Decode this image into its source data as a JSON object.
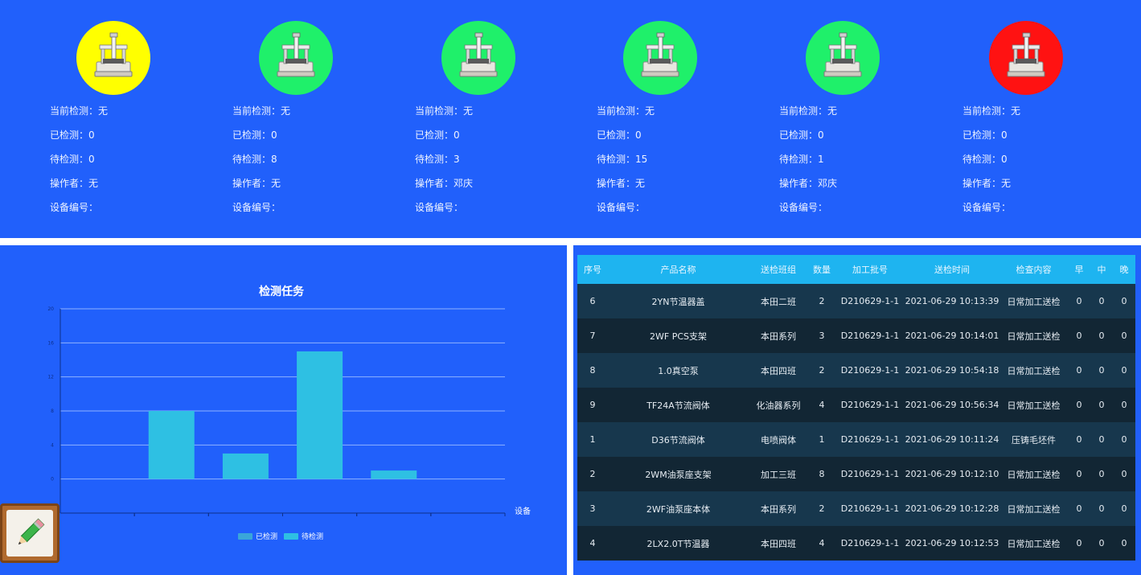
{
  "machines": [
    {
      "status_color": "#ffff00",
      "current_label": "当前检测：",
      "current_value": "无",
      "done_label": "已检测：",
      "done_value": "0",
      "pending_label": "待检测：",
      "pending_value": "0",
      "operator_label": "操作者：",
      "operator_value": "无",
      "device_label": "设备编号："
    },
    {
      "status_color": "#1ff06a",
      "current_label": "当前检测：",
      "current_value": "无",
      "done_label": "已检测：",
      "done_value": "0",
      "pending_label": "待检测：",
      "pending_value": "8",
      "operator_label": "操作者：",
      "operator_value": "无",
      "device_label": "设备编号："
    },
    {
      "status_color": "#1ff06a",
      "current_label": "当前检测：",
      "current_value": "无",
      "done_label": "已检测：",
      "done_value": "0",
      "pending_label": "待检测：",
      "pending_value": "3",
      "operator_label": "操作者：",
      "operator_value": "邓庆",
      "device_label": "设备编号："
    },
    {
      "status_color": "#1ff06a",
      "current_label": "当前检测：",
      "current_value": "无",
      "done_label": "已检测：",
      "done_value": "0",
      "pending_label": "待检测：",
      "pending_value": "15",
      "operator_label": "操作者：",
      "operator_value": "无",
      "device_label": "设备编号："
    },
    {
      "status_color": "#1ff06a",
      "current_label": "当前检测：",
      "current_value": "无",
      "done_label": "已检测：",
      "done_value": "0",
      "pending_label": "待检测：",
      "pending_value": "1",
      "operator_label": "操作者：",
      "operator_value": "邓庆",
      "device_label": "设备编号："
    },
    {
      "status_color": "#ff1212",
      "current_label": "当前检测：",
      "current_value": "无",
      "done_label": "已检测：",
      "done_value": "0",
      "pending_label": "待检测：",
      "pending_value": "0",
      "operator_label": "操作者：",
      "operator_value": "无",
      "device_label": "设备编号："
    }
  ],
  "chart_data": {
    "type": "bar",
    "title": "检测任务",
    "ylabel": "",
    "xlabel": "设备",
    "categories": [
      "",
      "",
      "",
      "",
      "",
      ""
    ],
    "series": [
      {
        "name": "已检测",
        "values": [
          0,
          0,
          0,
          0,
          0,
          0
        ],
        "color": "#3aa6d9"
      },
      {
        "name": "待检测",
        "values": [
          0,
          8,
          3,
          15,
          1,
          0
        ],
        "color": "#2ec0e3"
      }
    ],
    "ylim": [
      -4,
      20
    ],
    "yticks": [
      -4,
      0,
      4,
      8,
      12,
      16,
      20
    ],
    "grid": true,
    "legend_position": "bottom-center"
  },
  "edit_icon": "pencil-icon",
  "table": {
    "headers": [
      "序号",
      "产品名称",
      "送检班组",
      "数量",
      "加工批号",
      "送检时间",
      "检查内容",
      "早",
      "中",
      "晚"
    ],
    "rows": [
      [
        "6",
        "2YN节温器盖",
        "本田二班",
        "2",
        "D210629-1-1",
        "2021-06-29 10:13:39",
        "日常加工送检",
        "0",
        "0",
        "0"
      ],
      [
        "7",
        "2WF PCS支架",
        "本田系列",
        "3",
        "D210629-1-1",
        "2021-06-29 10:14:01",
        "日常加工送检",
        "0",
        "0",
        "0"
      ],
      [
        "8",
        "1.0真空泵",
        "本田四班",
        "2",
        "D210629-1-1",
        "2021-06-29 10:54:18",
        "日常加工送检",
        "0",
        "0",
        "0"
      ],
      [
        "9",
        "TF24A节流阀体",
        "化油器系列",
        "4",
        "D210629-1-1",
        "2021-06-29 10:56:34",
        "日常加工送检",
        "0",
        "0",
        "0"
      ],
      [
        "1",
        "D36节流阀体",
        "电喷阀体",
        "1",
        "D210629-1-1",
        "2021-06-29 10:11:24",
        "压铸毛坯件",
        "0",
        "0",
        "0"
      ],
      [
        "2",
        "2WM油泵座支架",
        "加工三班",
        "8",
        "D210629-1-1",
        "2021-06-29 10:12:10",
        "日常加工送检",
        "0",
        "0",
        "0"
      ],
      [
        "3",
        "2WF油泵座本体",
        "本田系列",
        "2",
        "D210629-1-1",
        "2021-06-29 10:12:28",
        "日常加工送检",
        "0",
        "0",
        "0"
      ],
      [
        "4",
        "2LX2.0T节温器",
        "本田四班",
        "4",
        "D210629-1-1",
        "2021-06-29 10:12:53",
        "日常加工送检",
        "0",
        "0",
        "0"
      ]
    ]
  }
}
